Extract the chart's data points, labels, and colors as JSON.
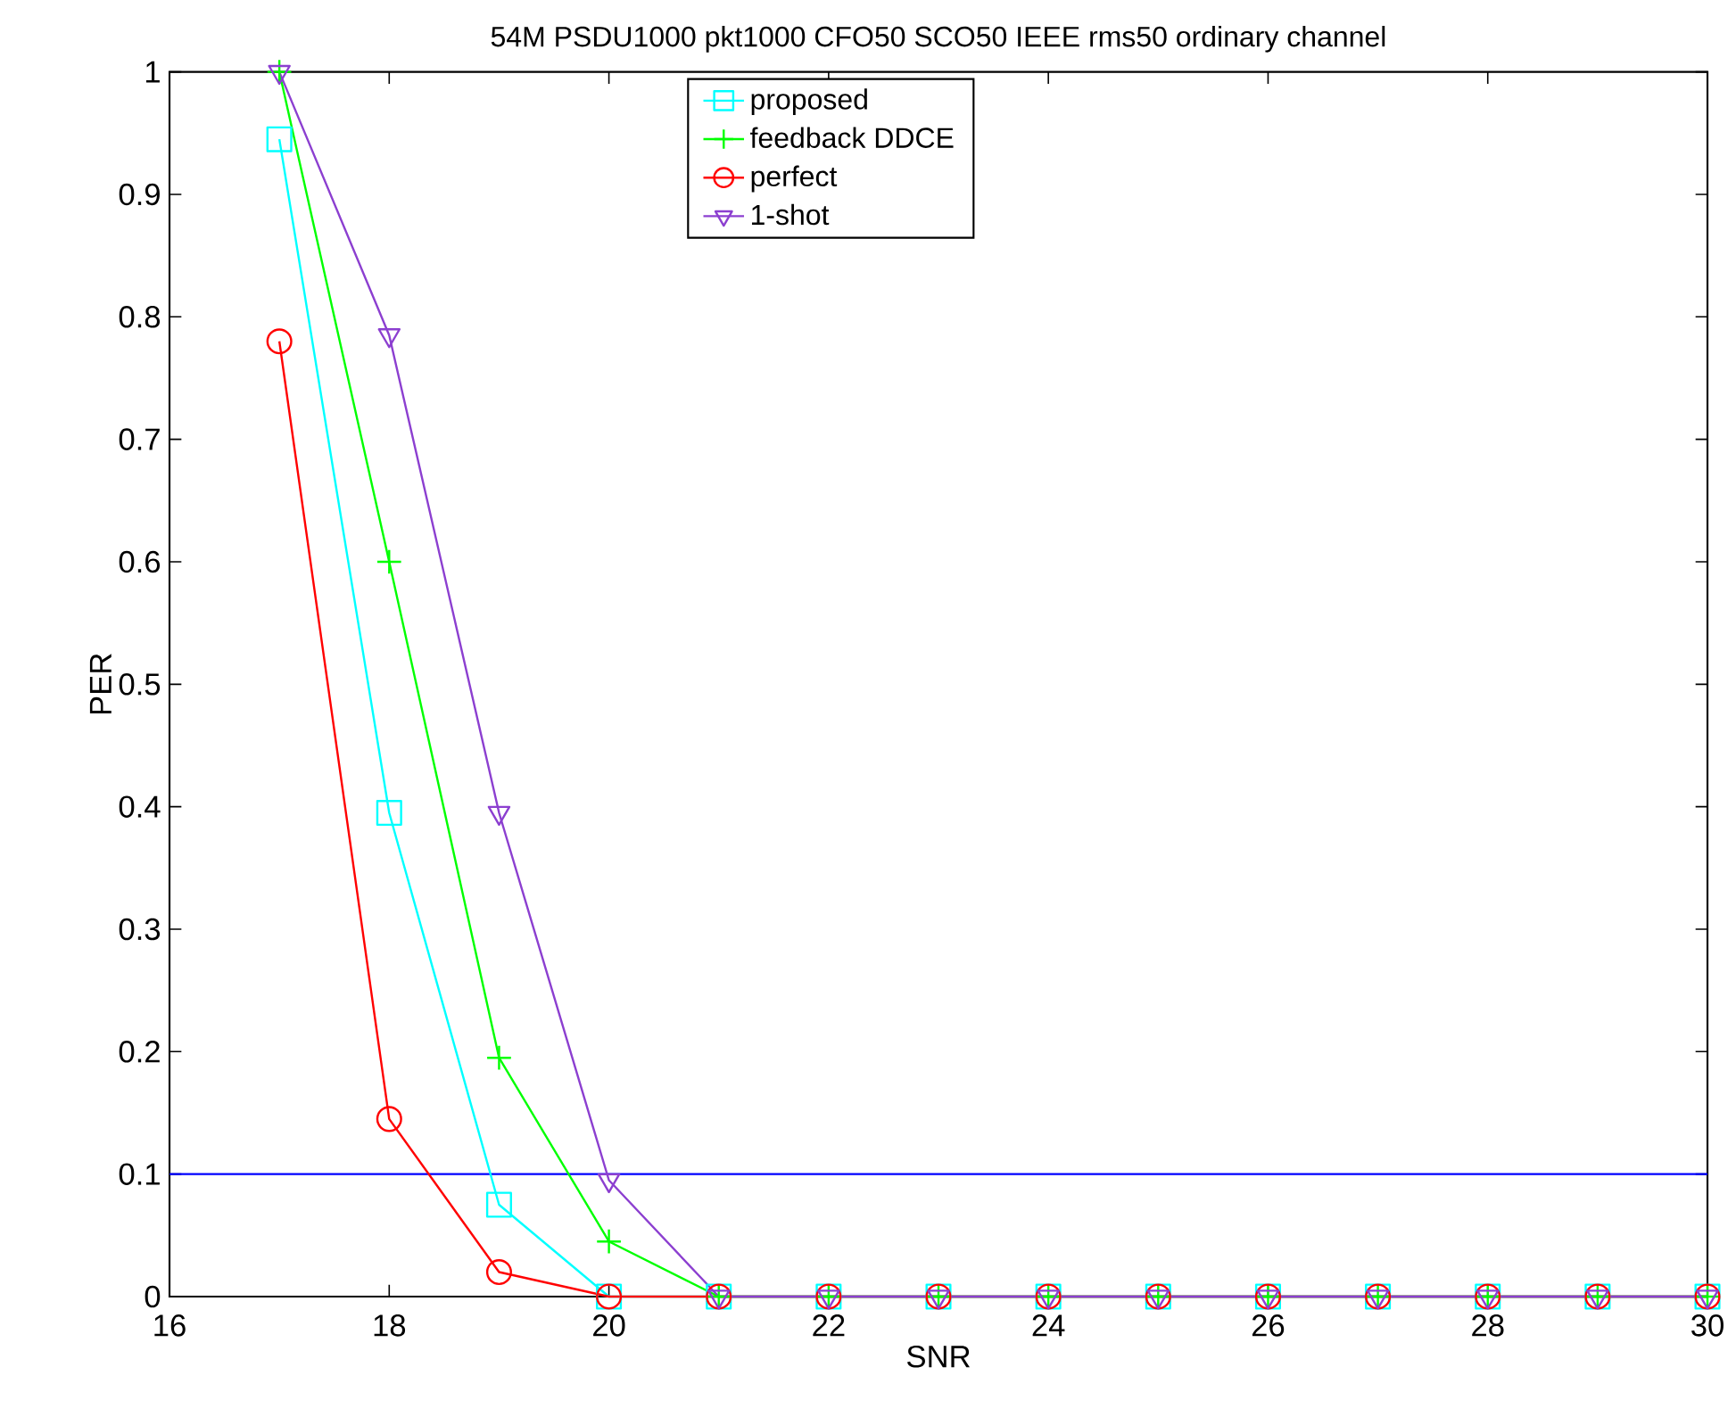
{
  "chart_data": {
    "type": "line",
    "title": "54M PSDU1000 pkt1000 CFO50 SCO50 IEEE rms50 ordinary channel",
    "xlabel": "SNR",
    "ylabel": "PER",
    "x": [
      17,
      18,
      19,
      20,
      21,
      22,
      23,
      24,
      25,
      26,
      27,
      28,
      29,
      30
    ],
    "series": [
      {
        "name": "proposed",
        "color": "#00ffff",
        "marker": "square",
        "values": [
          0.945,
          0.395,
          0.075,
          0,
          0,
          0,
          0,
          0,
          0,
          0,
          0,
          0,
          0,
          0
        ]
      },
      {
        "name": "feedback DDCE",
        "color": "#00ff00",
        "marker": "cross",
        "values": [
          1.0,
          0.6,
          0.195,
          0.045,
          0,
          0,
          0,
          0,
          0,
          0,
          0,
          0,
          0,
          0
        ]
      },
      {
        "name": "perfect",
        "color": "#ff0000",
        "marker": "circle",
        "values": [
          0.78,
          0.145,
          0.02,
          0,
          0,
          0,
          0,
          0,
          0,
          0,
          0,
          0,
          0,
          0
        ]
      },
      {
        "name": "1-shot",
        "color": "#8c3fd0",
        "marker": "triangle",
        "values": [
          1.0,
          0.785,
          0.395,
          0.095,
          0,
          0,
          0,
          0,
          0,
          0,
          0,
          0,
          0,
          0
        ]
      }
    ],
    "xlim": [
      16,
      30
    ],
    "ylim": [
      0,
      1
    ],
    "xticks": [
      16,
      18,
      20,
      22,
      24,
      26,
      28,
      30
    ],
    "yticks": [
      0,
      0.1,
      0.2,
      0.3,
      0.4,
      0.5,
      0.6,
      0.7,
      0.8,
      0.9,
      1
    ],
    "ref_lines": [
      {
        "axis": "y",
        "value": 0.1,
        "color": "#0000ff"
      }
    ],
    "legend": "top",
    "grid": false,
    "line_style": "solid"
  }
}
